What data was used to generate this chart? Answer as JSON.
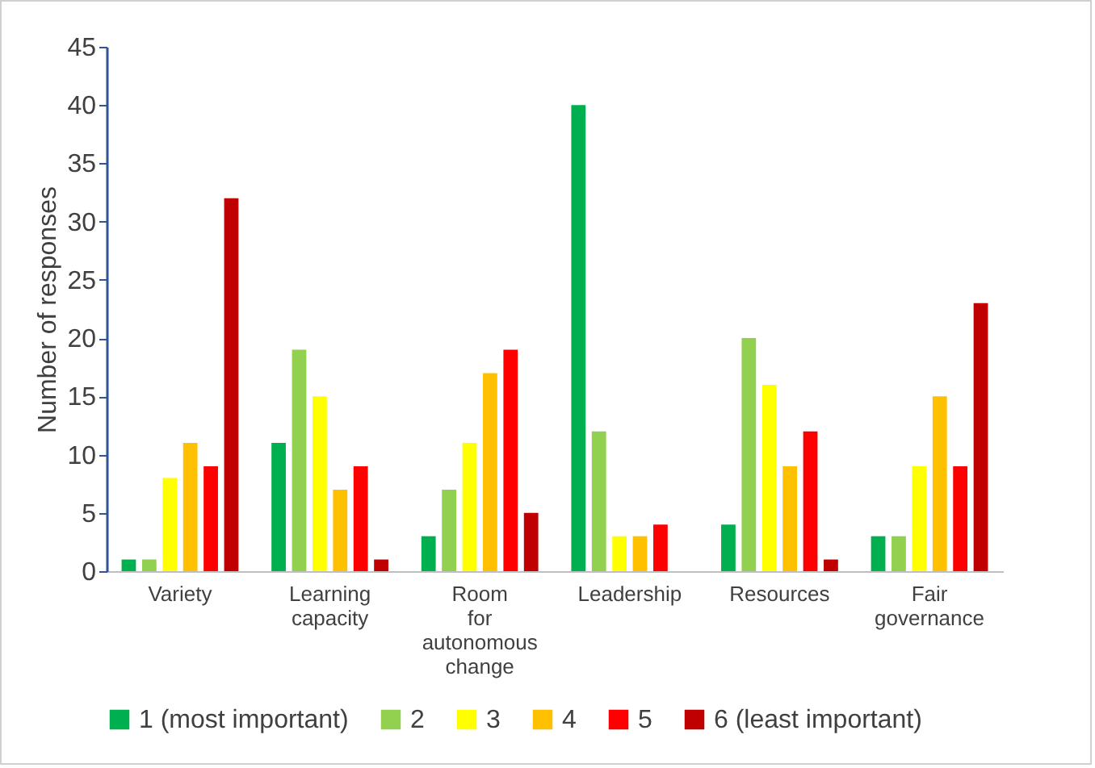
{
  "chart_data": {
    "type": "bar",
    "ylabel": "Number of responses",
    "categories": [
      "Variety",
      "Learning capacity",
      "Room for autonomous change",
      "Leadership",
      "Resources",
      "Fair governance"
    ],
    "series": [
      {
        "name": "1 (most important)",
        "color": "#00b050",
        "values": [
          1,
          11,
          3,
          40,
          4,
          3
        ]
      },
      {
        "name": "2",
        "color": "#92d050",
        "values": [
          1,
          19,
          7,
          12,
          20,
          3
        ]
      },
      {
        "name": "3",
        "color": "#ffff00",
        "values": [
          8,
          15,
          11,
          3,
          16,
          9
        ]
      },
      {
        "name": "4",
        "color": "#ffc000",
        "values": [
          11,
          7,
          17,
          3,
          9,
          15
        ]
      },
      {
        "name": "5",
        "color": "#ff0000",
        "values": [
          9,
          9,
          19,
          4,
          12,
          9
        ]
      },
      {
        "name": "6 (least important)",
        "color": "#c00000",
        "values": [
          32,
          1,
          5,
          0,
          1,
          23
        ]
      }
    ],
    "ylim": [
      0,
      45
    ],
    "yticks": [
      0,
      5,
      10,
      15,
      20,
      25,
      30,
      35,
      40,
      45
    ],
    "grid": false,
    "legend": "bottom"
  }
}
